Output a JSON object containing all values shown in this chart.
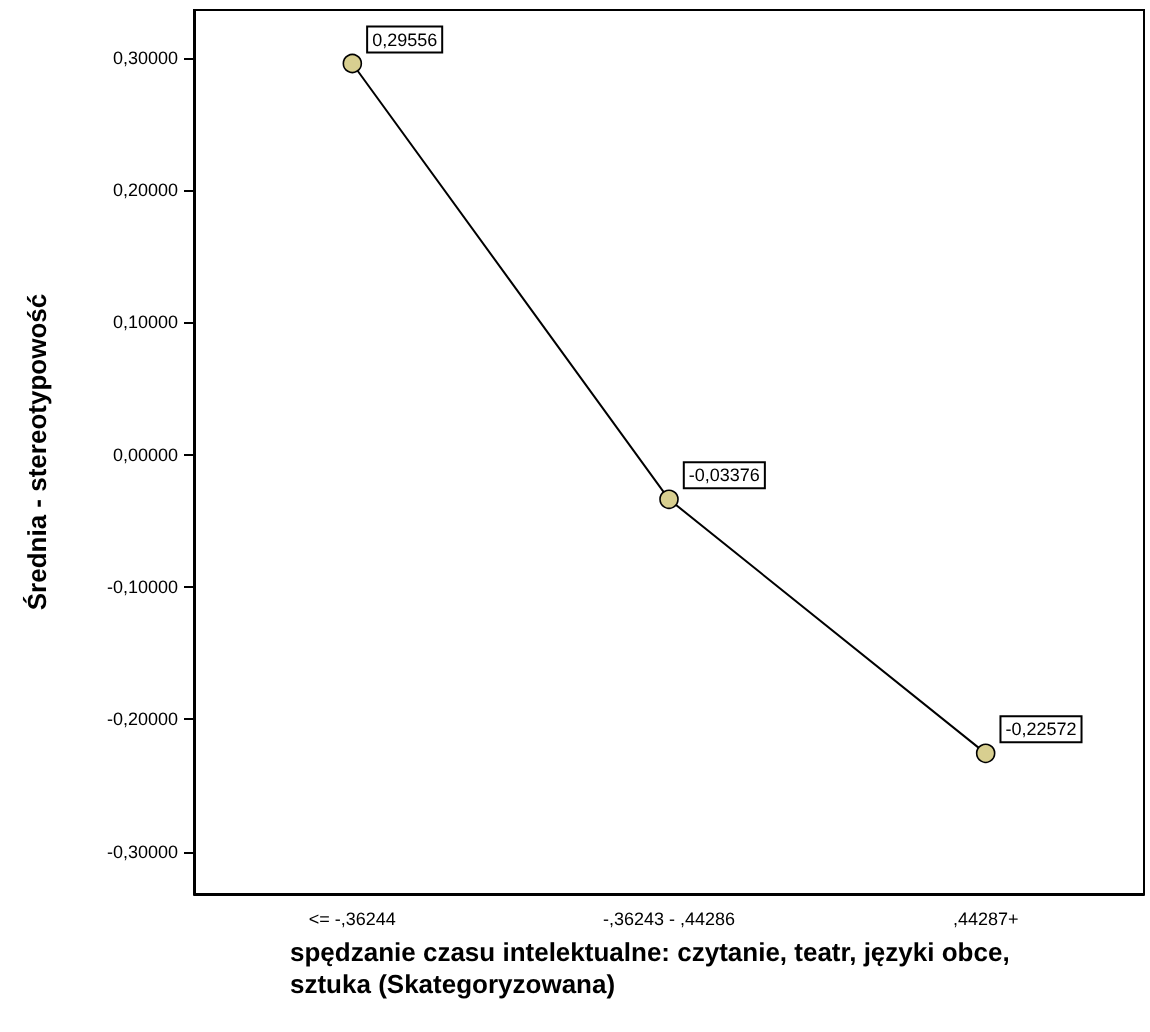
{
  "chart_data": {
    "type": "line",
    "xlabel": "spędzanie czasu intelektualne: czytanie, teatr, języki obce, sztuka (Skategoryzowana)",
    "ylabel": "Średnia - stereotypowość",
    "categories": [
      "<= -,36244",
      "-,36243 - ,44286",
      ",44287+"
    ],
    "series": [
      {
        "color": "#000000",
        "values": [
          0.29556,
          -0.03376,
          -0.22572
        ],
        "value_labels": [
          "0,29556",
          "-0,03376",
          "-0,22572"
        ]
      }
    ],
    "marker": "circle",
    "ylim": [
      -0.332,
      0.336
    ],
    "yticks": [
      {
        "value": -0.3,
        "label": "-0,30000"
      },
      {
        "value": -0.2,
        "label": "-0,20000"
      },
      {
        "value": -0.1,
        "label": "-0,10000"
      },
      {
        "value": 0,
        "label": "0,00000"
      },
      {
        "value": 0.1,
        "label": "0,10000"
      },
      {
        "value": 0.2,
        "label": "0,20000"
      },
      {
        "value": 0.3,
        "label": "0,30000"
      }
    ],
    "grid": false
  }
}
